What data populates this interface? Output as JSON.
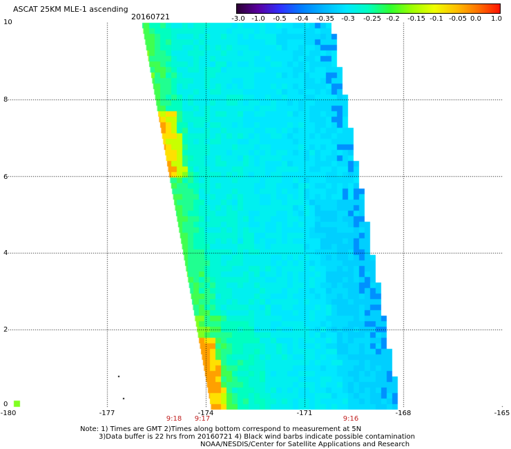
{
  "header": {
    "title": "ASCAT 25KM MLE-1 ascending",
    "date": "20160721"
  },
  "colorbar": {
    "labels": [
      "-3.0",
      "-1.0",
      "-0.5",
      "-0.4",
      "-0.35",
      "-0.3",
      "-0.25",
      "-0.2",
      "-0.15",
      "-0.1",
      "-0.05",
      "0.0",
      "1.0"
    ],
    "colors": [
      "#2b0030",
      "#5a00a0",
      "#3030ff",
      "#0080ff",
      "#00b8ff",
      "#00e8ff",
      "#00ffc0",
      "#30ff30",
      "#a0ff00",
      "#f0ff00",
      "#ffc000",
      "#ff7000",
      "#ff1000"
    ]
  },
  "axes": {
    "x_ticks": [
      "-180",
      "-177",
      "-174",
      "-171",
      "-168",
      "-165"
    ],
    "y_ticks": [
      "0",
      "2",
      "4",
      "6",
      "8",
      "10"
    ],
    "x_range": [
      -180,
      -165
    ],
    "y_range": [
      0,
      10
    ],
    "grid": "dotted"
  },
  "times": [
    "9:18",
    "9:17",
    "9:16"
  ],
  "notes": [
    "Note: 1) Times are GMT 2)Times along bottom correspond to measurement at 5N",
    "3)Data buffer is 22 hrs from 20160721 4) Black wind barbs indicate possible contamination",
    "NOAA/NESDIS/Center for Satellite Applications and Research"
  ],
  "colors": {
    "grid": "#000000",
    "time_labels": "#c02020"
  }
}
